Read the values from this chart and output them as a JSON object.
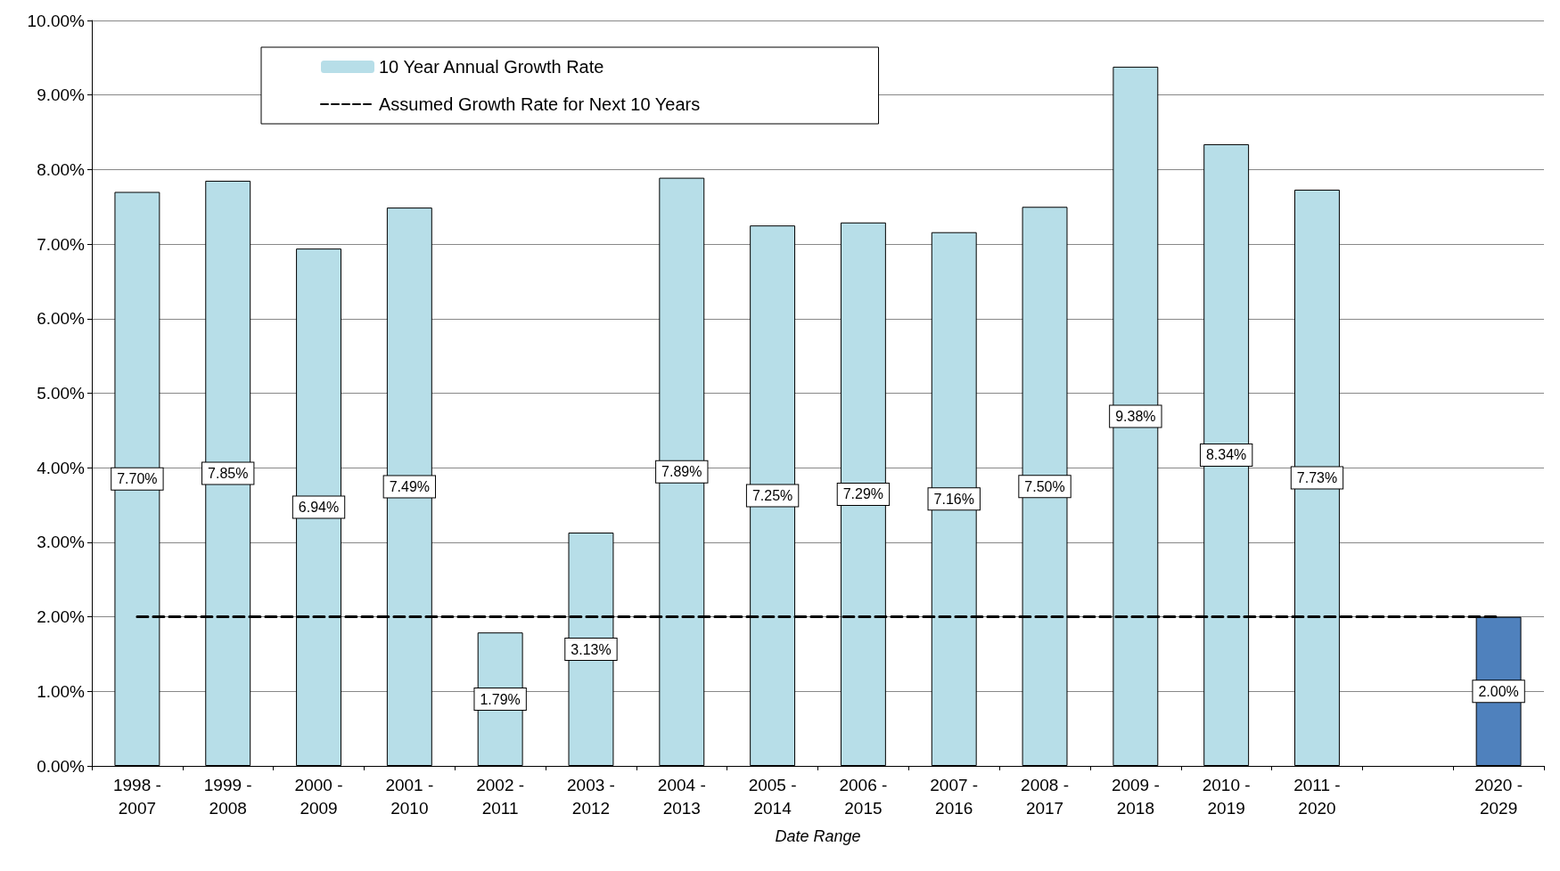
{
  "chart_data": {
    "type": "bar",
    "xlabel": "Date Range",
    "categories": [
      "1998 - 2007",
      "1999 - 2008",
      "2000 - 2009",
      "2001 - 2010",
      "2002 - 2011",
      "2003 - 2012",
      "2004 - 2013",
      "2005 - 2014",
      "2006 - 2015",
      "2007 - 2016",
      "2008 - 2017",
      "2009 - 2018",
      "2010 - 2019",
      "2011 - 2020",
      null,
      "2020 - 2029"
    ],
    "series": [
      {
        "name": "10 Year Annual Growth Rate",
        "colors": [
          "#b7dee8",
          "#b7dee8",
          "#b7dee8",
          "#b7dee8",
          "#b7dee8",
          "#b7dee8",
          "#b7dee8",
          "#b7dee8",
          "#b7dee8",
          "#b7dee8",
          "#b7dee8",
          "#b7dee8",
          "#b7dee8",
          "#b7dee8",
          null,
          "#4f81bd"
        ],
        "values": [
          7.7,
          7.85,
          6.94,
          7.49,
          1.79,
          3.13,
          7.89,
          7.25,
          7.29,
          7.16,
          7.5,
          9.38,
          8.34,
          7.73,
          null,
          2.0
        ],
        "value_labels": [
          "7.70%",
          "7.85%",
          "6.94%",
          "7.49%",
          "1.79%",
          "3.13%",
          "7.89%",
          "7.25%",
          "7.29%",
          "7.16%",
          "7.50%",
          "9.38%",
          "8.34%",
          "7.73%",
          null,
          "2.00%"
        ]
      },
      {
        "name": "Assumed Growth Rate for Next 10 Years",
        "type": "line",
        "color": "#000000",
        "line_style": "dashed",
        "values": [
          2,
          2,
          2,
          2,
          2,
          2,
          2,
          2,
          2,
          2,
          2,
          2,
          2,
          2,
          2,
          2
        ]
      }
    ],
    "ylim": [
      0,
      10
    ],
    "yticks": [
      {
        "value": 0,
        "label": "0.00%"
      },
      {
        "value": 1,
        "label": "1.00%"
      },
      {
        "value": 2,
        "label": "2.00%"
      },
      {
        "value": 3,
        "label": "3.00%"
      },
      {
        "value": 4,
        "label": "4.00%"
      },
      {
        "value": 5,
        "label": "5.00%"
      },
      {
        "value": 6,
        "label": "6.00%"
      },
      {
        "value": 7,
        "label": "7.00%"
      },
      {
        "value": 8,
        "label": "8.00%"
      },
      {
        "value": 9,
        "label": "9.00%"
      },
      {
        "value": 10,
        "label": "10.00%"
      }
    ],
    "grid": "y",
    "legend": "top left",
    "marker": "none"
  }
}
